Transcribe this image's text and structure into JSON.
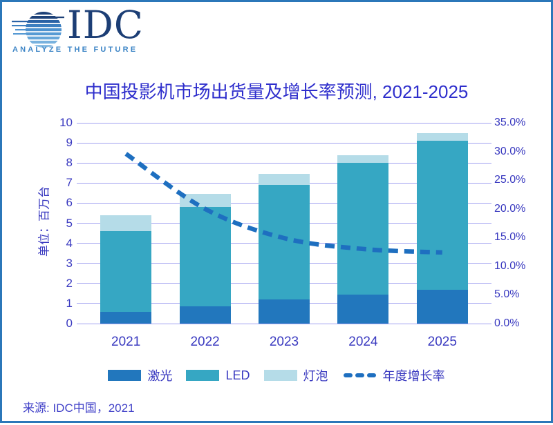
{
  "logo": {
    "text": "IDC",
    "tagline": "ANALYZE THE FUTURE"
  },
  "title": "中国投影机市场出货量及增长率预测, 2021-2025",
  "source": "来源: IDC中国，2021",
  "colors": {
    "border": "#2b77b9",
    "grid": "#a0a0f0",
    "axis_text": "#3a3ac0",
    "title_text": "#2e2ecc",
    "laser_bar": "#2277bd",
    "led_bar": "#36a7c3",
    "bulb_bar": "#b5dce8",
    "growth_line": "#1e6fc0",
    "logo_navy": "#1c3e75",
    "logo_blue": "#3d85c6"
  },
  "chart_data": {
    "type": "bar",
    "subtype": "stacked-bar-with-line",
    "title": "中国投影机市场出货量及增长率预测, 2021-2025",
    "categories": [
      "2021",
      "2022",
      "2023",
      "2024",
      "2025"
    ],
    "series": [
      {
        "name": "激光",
        "color": "#2277bd",
        "values": [
          0.6,
          0.85,
          1.2,
          1.45,
          1.7
        ]
      },
      {
        "name": "LED",
        "color": "#36a7c3",
        "values": [
          4.0,
          4.95,
          5.7,
          6.55,
          7.4
        ]
      },
      {
        "name": "灯泡",
        "color": "#b5dce8",
        "values": [
          0.8,
          0.65,
          0.55,
          0.4,
          0.4
        ]
      }
    ],
    "stacked_totals": [
      5.4,
      6.45,
      7.45,
      8.4,
      9.5
    ],
    "line_series": {
      "name": "年度增长率",
      "color": "#1e6fc0",
      "style": "dashed",
      "axis": "right",
      "unit": "%",
      "values": [
        29.6,
        20.0,
        14.9,
        13.0,
        12.4
      ]
    },
    "left_axis": {
      "label": "单位：百万台",
      "min": 0,
      "max": 10,
      "step": 1,
      "tick_labels": [
        "0",
        "1",
        "2",
        "3",
        "4",
        "5",
        "6",
        "7",
        "8",
        "9",
        "10"
      ]
    },
    "right_axis": {
      "min": 0,
      "max": 35,
      "step": 5,
      "tick_labels": [
        "0.0%",
        "5.0%",
        "10.0%",
        "15.0%",
        "20.0%",
        "25.0%",
        "30.0%",
        "35.0%"
      ]
    },
    "grid": true,
    "legend_position": "bottom"
  }
}
